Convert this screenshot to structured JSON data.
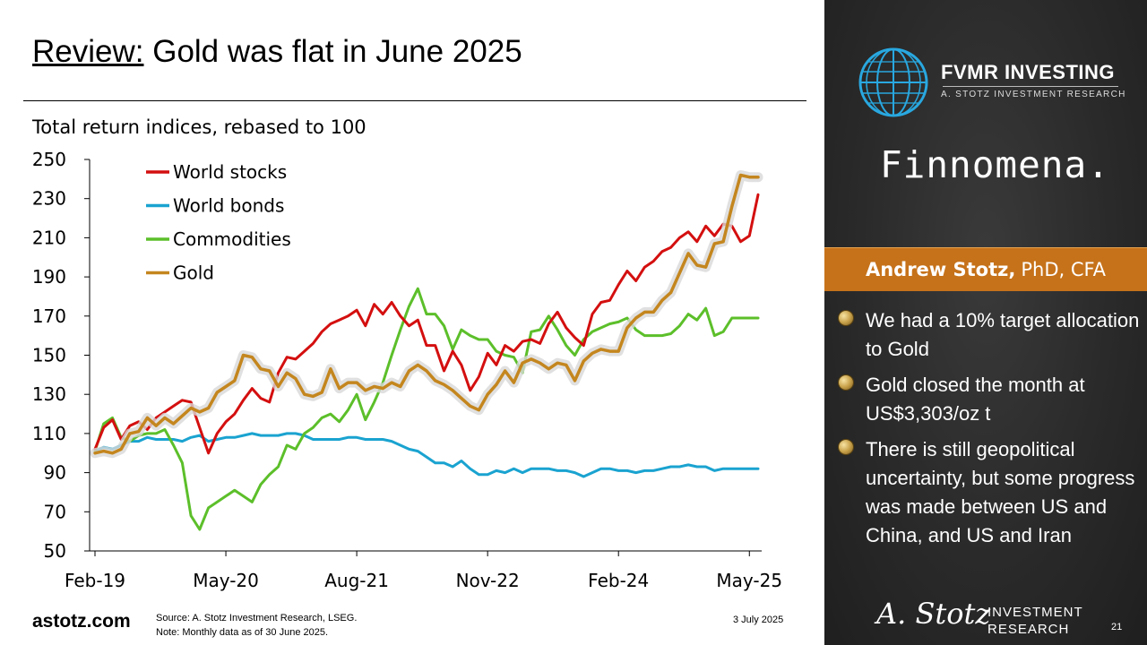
{
  "slide": {
    "title_prefix": "Review:",
    "title_main": "Gold was flat in June 2025",
    "brand": "astotz.com",
    "source_line1": "Source: A. Stotz Investment Research, LSEG.",
    "source_line2": "Note: Monthly data as of 30 June 2025.",
    "date": "3 July 2025",
    "page_number": "21"
  },
  "sidebar": {
    "logo_name": "FVMR INVESTING",
    "logo_sub": "A. STOTZ INVESTMENT RESEARCH",
    "partner": "Finnomena.",
    "presenter_name": "Andrew Stotz,",
    "presenter_credentials": "PhD, CFA",
    "bullets": [
      "We had a 10% target allocation to Gold",
      "Gold closed the month at US$3,303/oz t",
      "There is still geopolitical uncertainty, but some progress was made between US and China, and US and Iran"
    ],
    "signature": "A. Stotz",
    "research_line1": "INVESTMENT",
    "research_line2": "RESEARCH"
  },
  "colors": {
    "world_stocks": "#d40f0f",
    "world_bonds": "#1aa3d0",
    "commodities": "#5cbf2a",
    "gold": "#c4861e",
    "accent": "#c6721a"
  },
  "chart_data": {
    "type": "line",
    "title": "Total return indices, rebased to 100",
    "x_tick_labels": [
      "Feb-19",
      "May-20",
      "Aug-21",
      "Nov-22",
      "Feb-24",
      "May-25"
    ],
    "x_range": [
      "2019-02",
      "2025-06"
    ],
    "ylim": [
      50,
      250
    ],
    "y_ticks": [
      50,
      70,
      90,
      110,
      130,
      150,
      170,
      190,
      210,
      230,
      250
    ],
    "grid": false,
    "legend_position": "top-left",
    "series": [
      {
        "name": "World stocks",
        "x": [
          "2019-02",
          "2019-03",
          "2019-04",
          "2019-05",
          "2019-06",
          "2019-07",
          "2019-08",
          "2019-09",
          "2019-10",
          "2019-11",
          "2019-12",
          "2020-01",
          "2020-02",
          "2020-03",
          "2020-04",
          "2020-05",
          "2020-06",
          "2020-07",
          "2020-08",
          "2020-09",
          "2020-10",
          "2020-11",
          "2020-12",
          "2021-01",
          "2021-02",
          "2021-03",
          "2021-04",
          "2021-05",
          "2021-06",
          "2021-07",
          "2021-08",
          "2021-09",
          "2021-10",
          "2021-11",
          "2021-12",
          "2022-01",
          "2022-02",
          "2022-03",
          "2022-04",
          "2022-05",
          "2022-06",
          "2022-07",
          "2022-08",
          "2022-09",
          "2022-10",
          "2022-11",
          "2022-12",
          "2023-01",
          "2023-02",
          "2023-03",
          "2023-04",
          "2023-05",
          "2023-06",
          "2023-07",
          "2023-08",
          "2023-09",
          "2023-10",
          "2023-11",
          "2023-12",
          "2024-01",
          "2024-02",
          "2024-03",
          "2024-04",
          "2024-05",
          "2024-06",
          "2024-07",
          "2024-08",
          "2024-09",
          "2024-10",
          "2024-11",
          "2024-12",
          "2025-01",
          "2025-02",
          "2025-03",
          "2025-04",
          "2025-05",
          "2025-06"
        ],
        "values": [
          102,
          113,
          117,
          107,
          114,
          116,
          112,
          118,
          121,
          124,
          127,
          126,
          113,
          100,
          110,
          116,
          120,
          127,
          133,
          128,
          126,
          141,
          149,
          148,
          152,
          156,
          162,
          166,
          168,
          170,
          173,
          165,
          176,
          171,
          177,
          170,
          165,
          168,
          155,
          155,
          142,
          152,
          145,
          132,
          139,
          151,
          145,
          155,
          152,
          157,
          158,
          156,
          166,
          172,
          164,
          159,
          155,
          171,
          177,
          178,
          186,
          193,
          188,
          195,
          198,
          203,
          205,
          210,
          213,
          208,
          216,
          211,
          217,
          216,
          208,
          211,
          232
        ]
      },
      {
        "name": "World bonds",
        "x": [
          "2019-02",
          "2019-03",
          "2019-04",
          "2019-05",
          "2019-06",
          "2019-07",
          "2019-08",
          "2019-09",
          "2019-10",
          "2019-11",
          "2019-12",
          "2020-01",
          "2020-02",
          "2020-03",
          "2020-04",
          "2020-05",
          "2020-06",
          "2020-07",
          "2020-08",
          "2020-09",
          "2020-10",
          "2020-11",
          "2020-12",
          "2021-01",
          "2021-02",
          "2021-03",
          "2021-04",
          "2021-05",
          "2021-06",
          "2021-07",
          "2021-08",
          "2021-09",
          "2021-10",
          "2021-11",
          "2021-12",
          "2022-01",
          "2022-02",
          "2022-03",
          "2022-04",
          "2022-05",
          "2022-06",
          "2022-07",
          "2022-08",
          "2022-09",
          "2022-10",
          "2022-11",
          "2022-12",
          "2023-01",
          "2023-02",
          "2023-03",
          "2023-04",
          "2023-05",
          "2023-06",
          "2023-07",
          "2023-08",
          "2023-09",
          "2023-10",
          "2023-11",
          "2023-12",
          "2024-01",
          "2024-02",
          "2024-03",
          "2024-04",
          "2024-05",
          "2024-06",
          "2024-07",
          "2024-08",
          "2024-09",
          "2024-10",
          "2024-11",
          "2024-12",
          "2025-01",
          "2025-02",
          "2025-03",
          "2025-04",
          "2025-05",
          "2025-06"
        ],
        "values": [
          101,
          103,
          102,
          104,
          106,
          106,
          108,
          107,
          107,
          107,
          106,
          108,
          109,
          106,
          107,
          108,
          108,
          109,
          110,
          109,
          109,
          109,
          110,
          110,
          109,
          107,
          107,
          107,
          107,
          108,
          108,
          107,
          107,
          107,
          106,
          104,
          102,
          101,
          98,
          95,
          95,
          93,
          96,
          92,
          89,
          89,
          91,
          90,
          92,
          90,
          92,
          92,
          92,
          91,
          91,
          90,
          88,
          90,
          92,
          92,
          91,
          91,
          90,
          91,
          91,
          92,
          93,
          93,
          94,
          93,
          93,
          91,
          92,
          92,
          92,
          92,
          92
        ]
      },
      {
        "name": "Commodities",
        "x": [
          "2019-02",
          "2019-03",
          "2019-04",
          "2019-05",
          "2019-06",
          "2019-07",
          "2019-08",
          "2019-09",
          "2019-10",
          "2019-11",
          "2019-12",
          "2020-01",
          "2020-02",
          "2020-03",
          "2020-04",
          "2020-05",
          "2020-06",
          "2020-07",
          "2020-08",
          "2020-09",
          "2020-10",
          "2020-11",
          "2020-12",
          "2021-01",
          "2021-02",
          "2021-03",
          "2021-04",
          "2021-05",
          "2021-06",
          "2021-07",
          "2021-08",
          "2021-09",
          "2021-10",
          "2021-11",
          "2021-12",
          "2022-01",
          "2022-02",
          "2022-03",
          "2022-04",
          "2022-05",
          "2022-06",
          "2022-07",
          "2022-08",
          "2022-09",
          "2022-10",
          "2022-11",
          "2022-12",
          "2023-01",
          "2023-02",
          "2023-03",
          "2023-04",
          "2023-05",
          "2023-06",
          "2023-07",
          "2023-08",
          "2023-09",
          "2023-10",
          "2023-11",
          "2023-12",
          "2024-01",
          "2024-02",
          "2024-03",
          "2024-04",
          "2024-05",
          "2024-06",
          "2024-07",
          "2024-08",
          "2024-09",
          "2024-10",
          "2024-11",
          "2024-12",
          "2025-01",
          "2025-02",
          "2025-03",
          "2025-04",
          "2025-05",
          "2025-06"
        ],
        "values": [
          101,
          115,
          118,
          108,
          106,
          109,
          110,
          110,
          112,
          104,
          95,
          68,
          61,
          72,
          75,
          78,
          81,
          78,
          75,
          84,
          89,
          93,
          104,
          102,
          110,
          113,
          118,
          120,
          116,
          122,
          130,
          117,
          126,
          136,
          150,
          163,
          175,
          184,
          171,
          171,
          165,
          153,
          163,
          160,
          158,
          158,
          152,
          150,
          149,
          141,
          162,
          163,
          170,
          163,
          155,
          150,
          158,
          162,
          164,
          166,
          167,
          169,
          163,
          160,
          160,
          160,
          161,
          165,
          171,
          168,
          174,
          160,
          162,
          169,
          169,
          169,
          169
        ]
      },
      {
        "name": "Gold",
        "x": [
          "2019-02",
          "2019-03",
          "2019-04",
          "2019-05",
          "2019-06",
          "2019-07",
          "2019-08",
          "2019-09",
          "2019-10",
          "2019-11",
          "2019-12",
          "2020-01",
          "2020-02",
          "2020-03",
          "2020-04",
          "2020-05",
          "2020-06",
          "2020-07",
          "2020-08",
          "2020-09",
          "2020-10",
          "2020-11",
          "2020-12",
          "2021-01",
          "2021-02",
          "2021-03",
          "2021-04",
          "2021-05",
          "2021-06",
          "2021-07",
          "2021-08",
          "2021-09",
          "2021-10",
          "2021-11",
          "2021-12",
          "2022-01",
          "2022-02",
          "2022-03",
          "2022-04",
          "2022-05",
          "2022-06",
          "2022-07",
          "2022-08",
          "2022-09",
          "2022-10",
          "2022-11",
          "2022-12",
          "2023-01",
          "2023-02",
          "2023-03",
          "2023-04",
          "2023-05",
          "2023-06",
          "2023-07",
          "2023-08",
          "2023-09",
          "2023-10",
          "2023-11",
          "2023-12",
          "2024-01",
          "2024-02",
          "2024-03",
          "2024-04",
          "2024-05",
          "2024-06",
          "2024-07",
          "2024-08",
          "2024-09",
          "2024-10",
          "2024-11",
          "2024-12",
          "2025-01",
          "2025-02",
          "2025-03",
          "2025-04",
          "2025-05",
          "2025-06"
        ],
        "values": [
          100,
          101,
          100,
          102,
          110,
          111,
          118,
          114,
          118,
          115,
          119,
          123,
          121,
          123,
          131,
          134,
          137,
          150,
          149,
          143,
          142,
          134,
          141,
          138,
          130,
          129,
          131,
          143,
          133,
          136,
          136,
          132,
          134,
          133,
          136,
          134,
          142,
          145,
          142,
          137,
          135,
          132,
          128,
          124,
          122,
          130,
          135,
          142,
          136,
          146,
          148,
          146,
          143,
          146,
          145,
          137,
          147,
          151,
          153,
          152,
          152,
          164,
          169,
          172,
          172,
          178,
          182,
          192,
          202,
          196,
          195,
          207,
          208,
          226,
          242,
          241,
          241
        ]
      }
    ]
  }
}
